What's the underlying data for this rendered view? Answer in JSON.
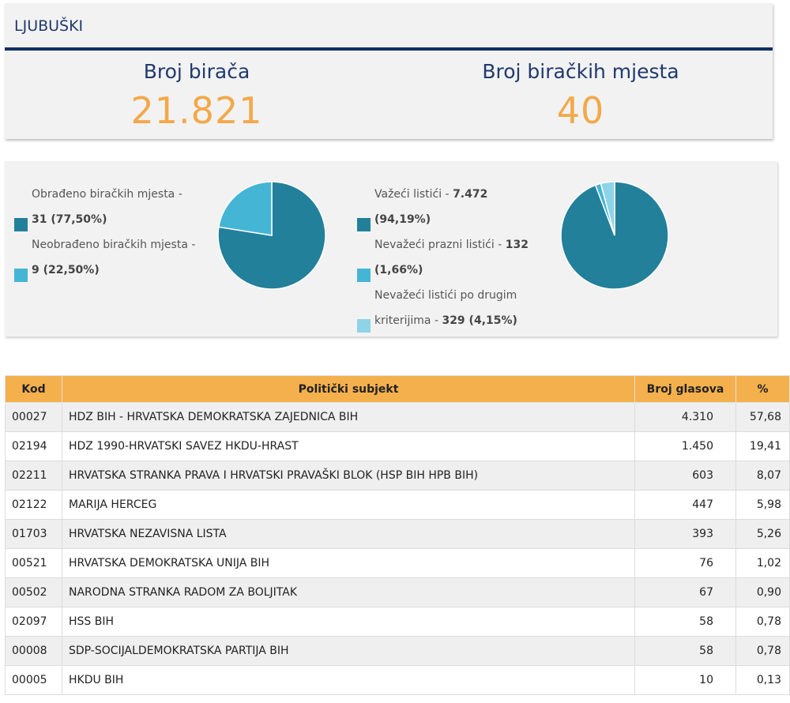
{
  "municipality": "LJUBUŠKI",
  "stats": {
    "voters_label": "Broj birača",
    "voters_value": "21.821",
    "stations_label": "Broj biračkih mjesta",
    "stations_value": "40"
  },
  "legend_left": [
    {
      "text": "Obrađeno biračkih mjesta -",
      "bold": "31 (77,50%)",
      "color": "#22809b"
    },
    {
      "text": "Neobrađeno biračkih mjesta -",
      "bold": "9 (22,50%)",
      "color": "#45b5d6"
    }
  ],
  "legend_right": [
    {
      "text": "Važeći listići -",
      "bold_inline": "7.472",
      "bold": "(94,19%)",
      "color": "#22809b"
    },
    {
      "text": "Nevažeći prazni listići -",
      "bold_inline": "132",
      "bold": "(1,66%)",
      "color": "#45b5d6"
    },
    {
      "text": "Nevažeći listići po drugim",
      "line2": "kriterijima -",
      "bold_inline2": "329 (4,15%)",
      "color": "#8fd3e8"
    }
  ],
  "chart_data": [
    {
      "type": "pie",
      "categories": [
        "Obrađeno biračkih mjesta",
        "Neobrađeno biračkih mjesta"
      ],
      "values": [
        31,
        9
      ],
      "colors": [
        "#22809b",
        "#45b5d6"
      ]
    },
    {
      "type": "pie",
      "categories": [
        "Važeći listići",
        "Nevažeći prazni listići",
        "Nevažeći listići po drugim kriterijima"
      ],
      "values": [
        7472,
        132,
        329
      ],
      "colors": [
        "#22809b",
        "#45b5d6",
        "#8fd3e8"
      ]
    }
  ],
  "table": {
    "headers": [
      "Kod",
      "Politički subjekt",
      "Broj glasova",
      "%"
    ],
    "rows": [
      [
        "00027",
        "HDZ BIH - HRVATSKA DEMOKRATSKA ZAJEDNICA BIH",
        "4.310",
        "57,68"
      ],
      [
        "02194",
        "HDZ 1990-HRVATSKI SAVEZ HKDU-HRAST",
        "1.450",
        "19,41"
      ],
      [
        "02211",
        "HRVATSKA STRANKA PRAVA I HRVATSKI PRAVAŠKI BLOK (HSP BIH HPB BIH)",
        "603",
        "8,07"
      ],
      [
        "02122",
        "MARIJA HERCEG",
        "447",
        "5,98"
      ],
      [
        "01703",
        "HRVATSKA NEZAVISNA LISTA",
        "393",
        "5,26"
      ],
      [
        "00521",
        "HRVATSKA DEMOKRATSKA UNIJA BIH",
        "76",
        "1,02"
      ],
      [
        "00502",
        "NARODNA STRANKA RADOM ZA BOLJITAK",
        "67",
        "0,90"
      ],
      [
        "02097",
        "HSS BIH",
        "58",
        "0,78"
      ],
      [
        "00008",
        "SDP-SOCIJALDEMOKRATSKA PARTIJA BIH",
        "58",
        "0,78"
      ],
      [
        "00005",
        "HKDU BIH",
        "10",
        "0,13"
      ]
    ]
  }
}
